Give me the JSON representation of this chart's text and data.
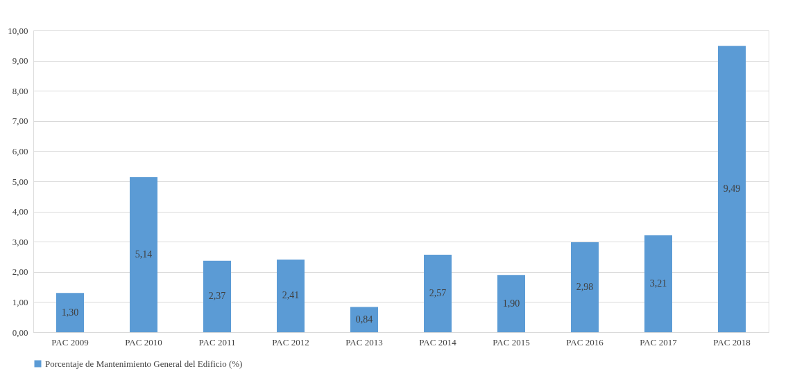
{
  "chart_data": {
    "type": "bar",
    "categories": [
      "PAC 2009",
      "PAC 2010",
      "PAC 2011",
      "PAC 2012",
      "PAC 2013",
      "PAC 2014",
      "PAC 2015",
      "PAC 2016",
      "PAC 2017",
      "PAC 2018"
    ],
    "series": [
      {
        "name": "Porcentaje de Mantenimiento General del Edificio (%)",
        "color": "#5b9bd5",
        "values": [
          1.3,
          5.14,
          2.37,
          2.41,
          0.84,
          2.57,
          1.9,
          2.98,
          3.21,
          9.49
        ],
        "value_labels": [
          "1,30",
          "5,14",
          "2,37",
          "2,41",
          "0,84",
          "2,57",
          "1,90",
          "2,98",
          "3,21",
          "9,49"
        ]
      }
    ],
    "ylim": [
      0,
      10
    ],
    "yticks": [
      {
        "value": 0,
        "label": "0,00"
      },
      {
        "value": 1,
        "label": "1,00"
      },
      {
        "value": 2,
        "label": "2,00"
      },
      {
        "value": 3,
        "label": "3,00"
      },
      {
        "value": 4,
        "label": "4,00"
      },
      {
        "value": 5,
        "label": "5,00"
      },
      {
        "value": 6,
        "label": "6,00"
      },
      {
        "value": 7,
        "label": "7,00"
      },
      {
        "value": 8,
        "label": "8,00"
      },
      {
        "value": 9,
        "label": "9,00"
      },
      {
        "value": 10,
        "label": "10,00"
      }
    ],
    "grid": "y",
    "legend": "bottom"
  }
}
